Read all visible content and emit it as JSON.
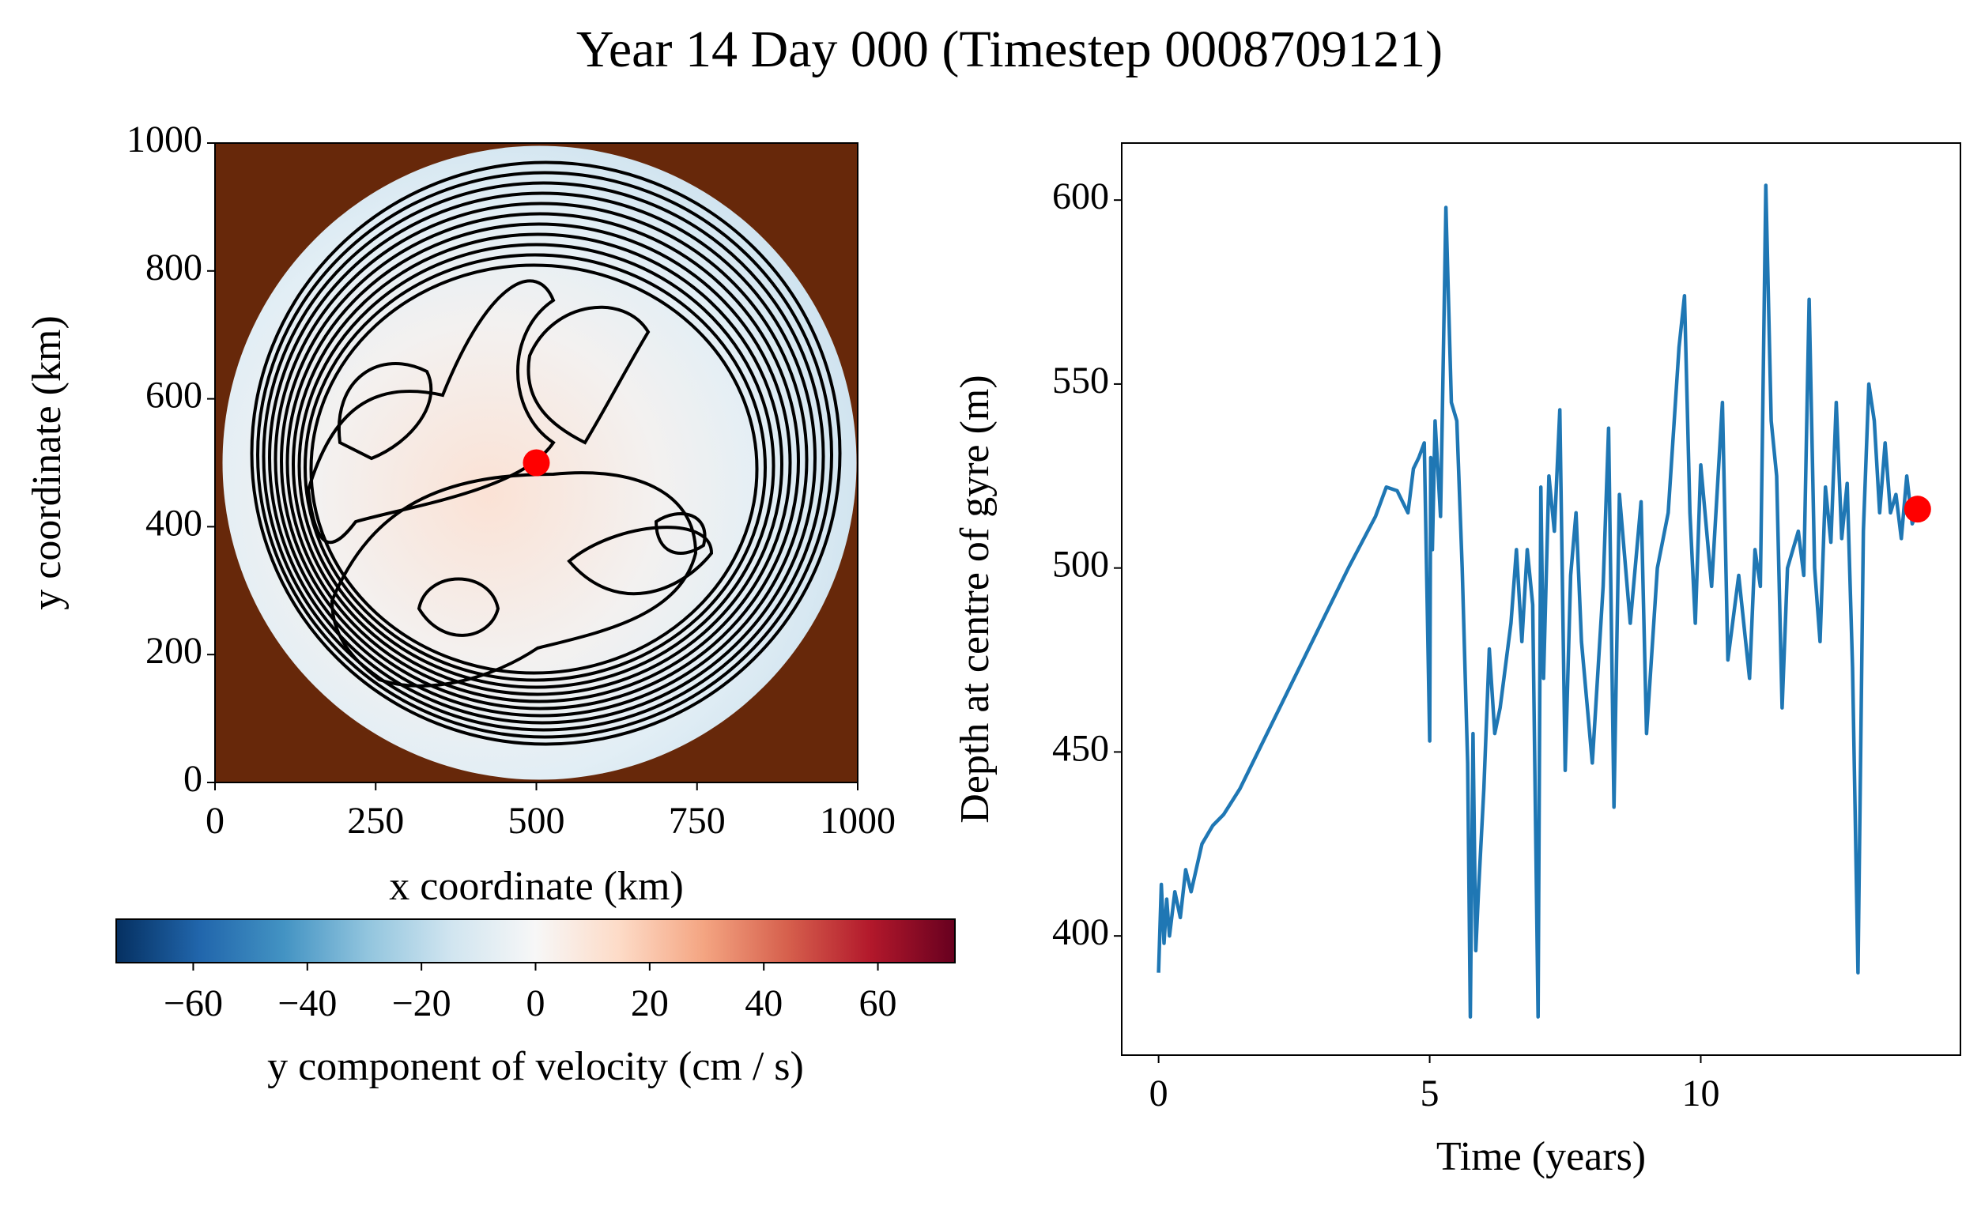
{
  "title": "Year 14 Day 000 (Timestep 0008709121)",
  "chart_data": [
    {
      "type": "heatmap",
      "xlabel": "x coordinate (km)",
      "ylabel": "y coordinate (km)",
      "xlim": [
        0,
        1000
      ],
      "ylim": [
        0,
        1000
      ],
      "xticks": [
        0,
        250,
        500,
        750,
        1000
      ],
      "yticks": [
        0,
        200,
        400,
        600,
        800,
        1000
      ],
      "marker": {
        "x": 500,
        "y": 500,
        "color": "#ff0000"
      },
      "colorbar": {
        "label": "y component of velocity (cm / s)",
        "lim": [
          -73.5,
          73.5
        ],
        "ticks": [
          {
            "value": -60,
            "label": "−60"
          },
          {
            "value": -40,
            "label": "−40"
          },
          {
            "value": -20,
            "label": "−20"
          },
          0,
          20,
          40,
          60
        ],
        "colormap": [
          "#053061",
          "#2166ac",
          "#4393c3",
          "#92c5de",
          "#d1e5f0",
          "#f7f7f7",
          "#fddbc7",
          "#f4a582",
          "#d6604d",
          "#b2182b",
          "#67001f"
        ]
      }
    },
    {
      "type": "line",
      "xlabel": "Time (years)",
      "ylabel": "Depth at centre of gyre (m)",
      "xlim": [
        -0.68,
        14.79
      ],
      "ylim": [
        367.6,
        615.5
      ],
      "xticks": [
        0,
        5,
        10
      ],
      "yticks": [
        400,
        450,
        500,
        550,
        600
      ],
      "color": "#1f77b4",
      "x": [
        0,
        0.05,
        0.1,
        0.15,
        0.2,
        0.3,
        0.4,
        0.5,
        0.6,
        0.8,
        1.0,
        1.2,
        1.5,
        2.0,
        2.5,
        3.0,
        3.5,
        4.0,
        4.2,
        4.4,
        4.6,
        4.7,
        4.8,
        4.9,
        5.0,
        5.02,
        5.05,
        5.1,
        5.2,
        5.3,
        5.4,
        5.5,
        5.6,
        5.7,
        5.75,
        5.8,
        5.85,
        5.9,
        6.0,
        6.1,
        6.2,
        6.3,
        6.5,
        6.6,
        6.7,
        6.8,
        6.9,
        7.0,
        7.05,
        7.1,
        7.2,
        7.3,
        7.4,
        7.5,
        7.6,
        7.7,
        7.8,
        8.0,
        8.2,
        8.3,
        8.4,
        8.5,
        8.7,
        8.9,
        9.0,
        9.2,
        9.4,
        9.6,
        9.7,
        9.8,
        9.9,
        10.0,
        10.2,
        10.4,
        10.5,
        10.7,
        10.9,
        11.0,
        11.1,
        11.2,
        11.3,
        11.4,
        11.5,
        11.6,
        11.8,
        11.9,
        12.0,
        12.1,
        12.2,
        12.3,
        12.4,
        12.5,
        12.6,
        12.7,
        12.8,
        12.9,
        13.0,
        13.1,
        13.2,
        13.3,
        13.4,
        13.5,
        13.6,
        13.7,
        13.8,
        13.9,
        14.0
      ],
      "values": [
        390,
        414,
        398,
        410,
        400,
        412,
        405,
        418,
        412,
        425,
        430,
        433,
        440,
        455,
        470,
        485,
        500,
        514,
        522,
        521,
        515,
        527,
        530,
        534,
        453,
        530,
        505,
        540,
        514,
        598,
        545,
        540,
        500,
        447,
        378,
        455,
        396,
        412,
        440,
        478,
        455,
        462,
        485,
        505,
        480,
        505,
        490,
        378,
        522,
        470,
        525,
        510,
        543,
        445,
        498,
        515,
        480,
        447,
        495,
        538,
        435,
        520,
        485,
        518,
        455,
        500,
        515,
        560,
        574,
        515,
        485,
        528,
        495,
        545,
        475,
        498,
        470,
        505,
        495,
        604,
        540,
        525,
        462,
        500,
        510,
        498,
        573,
        500,
        480,
        522,
        507,
        545,
        508,
        523,
        473,
        390,
        510,
        550,
        540,
        515,
        534,
        515,
        520,
        508,
        525,
        512,
        516
      ],
      "marker": {
        "x": 14,
        "y": 516,
        "color": "#ff0000"
      }
    }
  ]
}
